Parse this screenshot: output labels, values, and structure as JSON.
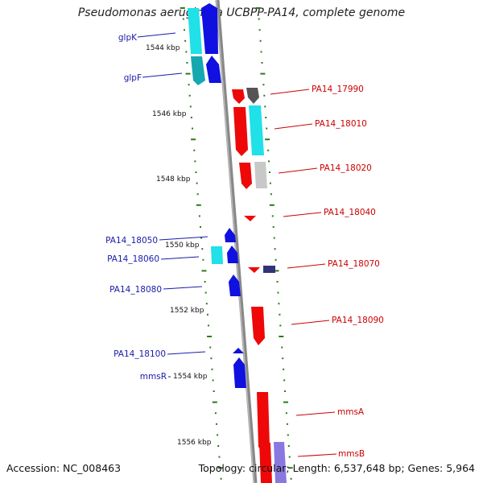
{
  "title": "Pseudomonas aeruginosa UCBPP-PA14, complete genome",
  "footer": {
    "accession": "Accession: NC_008463",
    "summary": "Topology: circular; Length: 6,537,648 bp; Genes: 5,964"
  },
  "colors": {
    "backbone": "#888888",
    "tick": "#2a7a1a",
    "left_label": "#1a1aaa",
    "right_label": "#cc0000",
    "blue": "#1010e0",
    "cyan": "#20e0e8",
    "teal": "#15a8b0",
    "red": "#ee0808",
    "dark_gray": "#555555",
    "light_gray": "#c8c8c8",
    "navy": "#333377",
    "lavender": "#8878e0"
  },
  "scale_labels": [
    "1544 kbp",
    "1546 kbp",
    "1548 kbp",
    "1550 kbp",
    "1552 kbp",
    "1554 kbp",
    "1556 kbp"
  ],
  "genes_left": [
    "glpK",
    "glpF",
    "PA14_18050",
    "PA14_18060",
    "PA14_18080",
    "PA14_18100",
    "mmsR"
  ],
  "genes_right": [
    "PA14_17990",
    "PA14_18010",
    "PA14_18020",
    "PA14_18040",
    "PA14_18070",
    "PA14_18090",
    "mmsA",
    "mmsB"
  ]
}
